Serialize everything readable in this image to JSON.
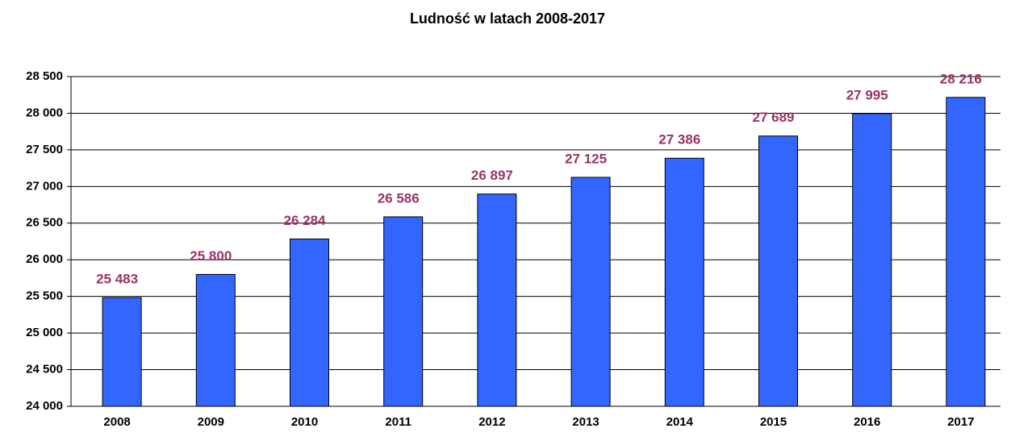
{
  "chart_data": {
    "type": "bar",
    "title": "Ludność  w latach 2008-2017",
    "categories": [
      "2008",
      "2009",
      "2010",
      "2011",
      "2012",
      "2013",
      "2014",
      "2015",
      "2016",
      "2017"
    ],
    "values": [
      25483,
      25800,
      26284,
      26586,
      26897,
      27125,
      27386,
      27689,
      27995,
      28216
    ],
    "value_labels": [
      "25 483",
      "25 800",
      "26 284",
      "26 586",
      "26 897",
      "27 125",
      "27 386",
      "27 689",
      "27 995",
      "28 216"
    ],
    "color": "#3366ff",
    "label_color": "#993366",
    "ylim": [
      24000,
      28500
    ],
    "yticks": [
      {
        "value": 24000,
        "label": "24 000"
      },
      {
        "value": 24500,
        "label": "24 500"
      },
      {
        "value": 25000,
        "label": "25 000"
      },
      {
        "value": 25500,
        "label": "25 500"
      },
      {
        "value": 26000,
        "label": "26 000"
      },
      {
        "value": 26500,
        "label": "26 500"
      },
      {
        "value": 27000,
        "label": "27 000"
      },
      {
        "value": 27500,
        "label": "27 500"
      },
      {
        "value": 28000,
        "label": "28 000"
      },
      {
        "value": 28500,
        "label": "28 500"
      }
    ],
    "grid": true
  }
}
